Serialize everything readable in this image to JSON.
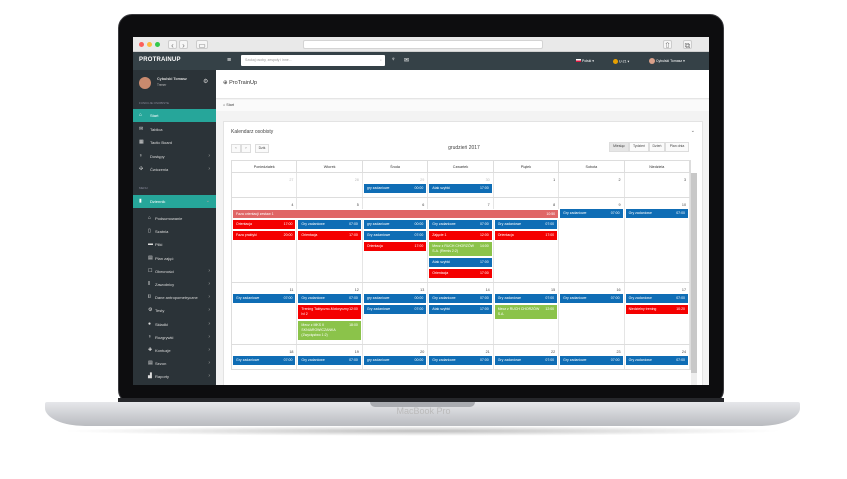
{
  "device_label": "MacBook Pro",
  "browser": {
    "tabs_icon": "sidebar-icon",
    "back": "‹",
    "forward": "›"
  },
  "header": {
    "logo": "PROTRAINUP",
    "search_placeholder": "Szukaj osoby, zespoły i inne...",
    "language": "Polski",
    "team": "U-21",
    "user": "Cybulski Tomasz"
  },
  "sidebar": {
    "user_name": "Cybulski Tomasz",
    "user_role": "Trener",
    "section1": "FUNKCJE OSOBISTE",
    "section2": "MENU",
    "items": [
      {
        "label": "Start",
        "icon": "home",
        "active": true
      },
      {
        "label": "Tablica",
        "icon": "chat"
      },
      {
        "label": "Tactic Board",
        "icon": "board"
      },
      {
        "label": "Dostępy",
        "icon": "trophy",
        "chevron": true
      },
      {
        "label": "Ćwiczenia",
        "icon": "exercise",
        "chevron": true
      }
    ],
    "menu_items": [
      {
        "label": "Dziennik",
        "icon": "book",
        "active": true,
        "chevron": true
      }
    ],
    "sub_items": [
      {
        "label": "Podsumowanie",
        "icon": "home"
      },
      {
        "label": "Szatnia",
        "icon": "door"
      },
      {
        "label": "Pliki",
        "icon": "file"
      },
      {
        "label": "Plan zajęć",
        "icon": "calendar"
      },
      {
        "label": "Obecności",
        "icon": "check",
        "chevron": true
      },
      {
        "label": "Zawodnicy",
        "icon": "users",
        "chevron": true
      },
      {
        "label": "Dane antropometryczne",
        "icon": "ruler",
        "chevron": true
      },
      {
        "label": "Testy",
        "icon": "gear",
        "chevron": true
      },
      {
        "label": "Składki",
        "icon": "piggy",
        "chevron": true
      },
      {
        "label": "Rozgrywki",
        "icon": "trophy",
        "chevron": true
      },
      {
        "label": "Kontuzje",
        "icon": "medkit",
        "chevron": true
      },
      {
        "label": "Sezon",
        "icon": "calendar",
        "chevron": true
      },
      {
        "label": "Raporty",
        "icon": "chart",
        "chevron": true
      }
    ]
  },
  "page": {
    "title": "ProTrainUp",
    "breadcrumb": "Start"
  },
  "calendar": {
    "title": "Kalendarz osobisty",
    "today": "Dziś",
    "month": "grudzień 2017",
    "views": [
      "Miesiąc",
      "Tydzień",
      "Dzień",
      "Plan dnia"
    ],
    "active_view": "Miesiąc",
    "days": [
      "Poniedziałek",
      "Wtorek",
      "Środa",
      "Czwartek",
      "Piątek",
      "Sobota",
      "Niedziela"
    ],
    "colors": {
      "blue": "#0f6db5",
      "red": "#f40000",
      "green": "#8bc34a",
      "span": "#e06666"
    },
    "weeks": [
      {
        "nums": [
          "27",
          "28",
          "29",
          "30",
          "1",
          "2",
          "3"
        ],
        "muted": [
          true,
          true,
          true,
          true,
          false,
          false,
          false
        ],
        "events": [
          [],
          [],
          [
            {
              "t": "gry zadaniowe",
              "h": "00:00",
              "c": "blue"
            }
          ],
          [
            {
              "t": "Atak szybki",
              "h": "17:00",
              "c": "blue"
            }
          ],
          [],
          [],
          []
        ]
      },
      {
        "nums": [
          "4",
          "5",
          "6",
          "7",
          "8",
          "9",
          "10"
        ],
        "muted": [
          false,
          false,
          false,
          false,
          false,
          false,
          false
        ],
        "span": {
          "t": "Faza orientacji zestaw 1",
          "h": "10:50"
        },
        "events": [
          [
            {
              "t": "Orientacja",
              "h": "17:00",
              "c": "red"
            },
            {
              "t": "Faza praktyki",
              "h": "20:00",
              "c": "red"
            }
          ],
          [
            {
              "t": "Gry zadaniowe",
              "h": "07:00",
              "c": "blue"
            },
            {
              "t": "Orientacja",
              "h": "17:00",
              "c": "red"
            }
          ],
          [
            {
              "t": "gry zadaniowe",
              "h": "00:00",
              "c": "blue"
            },
            {
              "t": "Gry zadaniowe",
              "h": "07:00",
              "c": "blue"
            },
            {
              "t": "Orientacja",
              "h": "17:00",
              "c": "red"
            }
          ],
          [
            {
              "t": "Gry zadaniowe",
              "h": "07:00",
              "c": "blue"
            },
            {
              "t": "Zajęcie 1",
              "h": "12:00",
              "c": "red"
            },
            {
              "t": "Mecz z RUCH CHORZÓW S.A. (Remis 2:2)",
              "h": "14:00",
              "c": "green"
            },
            {
              "t": "Atak szybki",
              "h": "17:00",
              "c": "blue"
            },
            {
              "t": "Orientacja",
              "h": "17:00",
              "c": "red"
            }
          ],
          [
            {
              "t": "Gry zadaniowe",
              "h": "07:00",
              "c": "blue"
            },
            {
              "t": "Orientacja",
              "h": "17:00",
              "c": "red"
            }
          ],
          [
            {
              "t": "Gry zadaniowe",
              "h": "07:00",
              "c": "blue"
            }
          ],
          [
            {
              "t": "Gry zadaniowe",
              "h": "07:00",
              "c": "blue"
            }
          ]
        ]
      },
      {
        "nums": [
          "11",
          "12",
          "13",
          "14",
          "15",
          "16",
          "17"
        ],
        "muted": [
          false,
          false,
          false,
          false,
          false,
          false,
          false
        ],
        "events": [
          [
            {
              "t": "Gry zadaniowe",
              "h": "07:00",
              "c": "blue"
            }
          ],
          [
            {
              "t": "Gry zadaniowe",
              "h": "07:00",
              "c": "blue"
            },
            {
              "t": "Trening Taktyczno-Motoryczny lvl 2",
              "h": "12:00",
              "c": "red"
            },
            {
              "t": "Mecz z MKS II SKNIAROWICZANKA (Zwycięstwo 1:2)",
              "h": "18:00",
              "c": "green"
            }
          ],
          [
            {
              "t": "gry zadaniowe",
              "h": "00:00",
              "c": "blue"
            },
            {
              "t": "Gry zadaniowe",
              "h": "07:00",
              "c": "blue"
            }
          ],
          [
            {
              "t": "Gry zadaniowe",
              "h": "07:00",
              "c": "blue"
            },
            {
              "t": "Atak szybki",
              "h": "17:00",
              "c": "blue"
            }
          ],
          [
            {
              "t": "Gry zadaniowe",
              "h": "07:00",
              "c": "blue"
            },
            {
              "t": "Mecz z RUCH CHORZÓW S.A.",
              "h": "12:00",
              "c": "green"
            }
          ],
          [
            {
              "t": "Gry zadaniowe",
              "h": "07:00",
              "c": "blue"
            }
          ],
          [
            {
              "t": "Gry zadaniowe",
              "h": "07:00",
              "c": "blue"
            },
            {
              "t": "Niedzielny trening",
              "h": "10:20",
              "c": "red"
            }
          ]
        ]
      },
      {
        "nums": [
          "18",
          "19",
          "20",
          "21",
          "22",
          "23",
          "24"
        ],
        "muted": [
          false,
          false,
          false,
          false,
          false,
          false,
          false
        ],
        "events": [
          [
            {
              "t": "Gry zadaniowe",
              "h": "07:00",
              "c": "blue"
            }
          ],
          [
            {
              "t": "Gry zadaniowe",
              "h": "07:00",
              "c": "blue"
            }
          ],
          [
            {
              "t": "gry zadaniowe",
              "h": "00:00",
              "c": "blue"
            }
          ],
          [
            {
              "t": "Gry zadaniowe",
              "h": "07:00",
              "c": "blue"
            }
          ],
          [
            {
              "t": "Gry zadaniowe",
              "h": "07:00",
              "c": "blue"
            }
          ],
          [
            {
              "t": "Gry zadaniowe",
              "h": "07:00",
              "c": "blue"
            }
          ],
          [
            {
              "t": "Gry zadaniowe",
              "h": "07:00",
              "c": "blue"
            }
          ]
        ]
      }
    ]
  }
}
